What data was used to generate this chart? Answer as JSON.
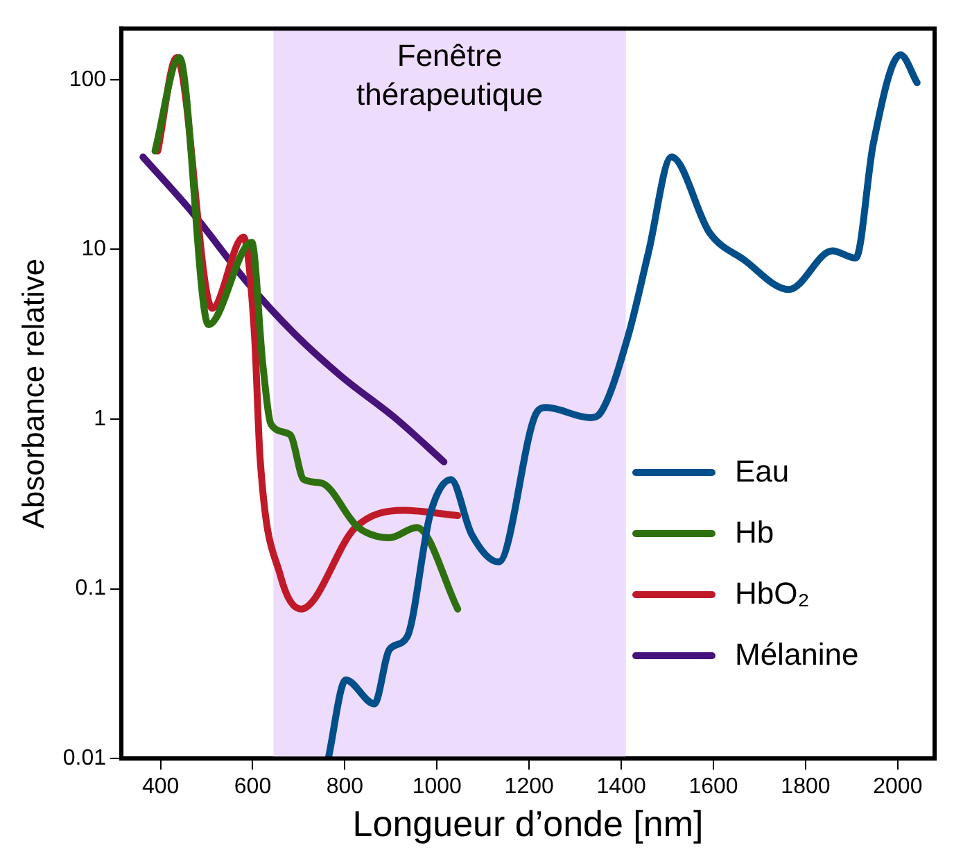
{
  "chart_data": {
    "type": "line",
    "xlabel": "Longueur d’onde [nm]",
    "ylabel": "Absorbance relative",
    "log": "y",
    "grid": false,
    "legend": "right",
    "marker": "none",
    "line_style": "solid",
    "xlim": [
      315,
      2080
    ],
    "xticks": [
      400,
      600,
      800,
      1000,
      1200,
      1400,
      1600,
      1800,
      2000
    ],
    "ylim": [
      0.01,
      200
    ],
    "yticks": [
      0.01,
      0.1,
      1,
      10,
      100
    ],
    "bands": [
      {
        "axis": "x",
        "from": 645,
        "to": 1410,
        "label": "Fenêtre thérapeutique",
        "color": "#eedcfc"
      }
    ],
    "series": [
      {
        "name": "Eau",
        "color": "#004f8a",
        "x": [
          764,
          802,
          864,
          897,
          935,
          986,
          1030,
          1075,
          1134,
          1217,
          1237,
          1332,
          1356,
          1415,
          1459,
          1509,
          1592,
          1666,
          1764,
          1858,
          1909,
          1947,
          2006,
          2042
        ],
        "values": [
          0.01,
          0.029,
          0.021,
          0.044,
          0.052,
          0.28,
          0.44,
          0.21,
          0.144,
          1.1,
          1.17,
          1.02,
          1.1,
          3.1,
          9.6,
          35,
          12.5,
          8.7,
          5.8,
          9.8,
          8.9,
          42,
          140,
          96
        ]
      },
      {
        "name": "Hb",
        "color": "#2e7010",
        "x": [
          388,
          441,
          504,
          598,
          622,
          640,
          681,
          711,
          749,
          829,
          897,
          956,
          1045
        ],
        "values": [
          38,
          135,
          3.6,
          11,
          2.1,
          0.93,
          0.81,
          0.44,
          0.42,
          0.23,
          0.2,
          0.23,
          0.076
        ]
      },
      {
        "name": "HbO₂",
        "color": "#c01a28",
        "x": [
          394,
          435,
          512,
          580,
          604,
          616,
          660,
          705,
          823,
          927,
          1045
        ],
        "values": [
          38,
          135,
          4.5,
          11.8,
          3.1,
          0.59,
          0.12,
          0.076,
          0.23,
          0.29,
          0.27
        ]
      },
      {
        "name": "Mélanine",
        "color": "#45137a",
        "x": [
          362,
          468,
          586,
          690,
          793,
          912,
          1015
        ],
        "values": [
          35,
          16.6,
          6.5,
          3.2,
          1.78,
          1.0,
          0.56
        ]
      }
    ]
  }
}
